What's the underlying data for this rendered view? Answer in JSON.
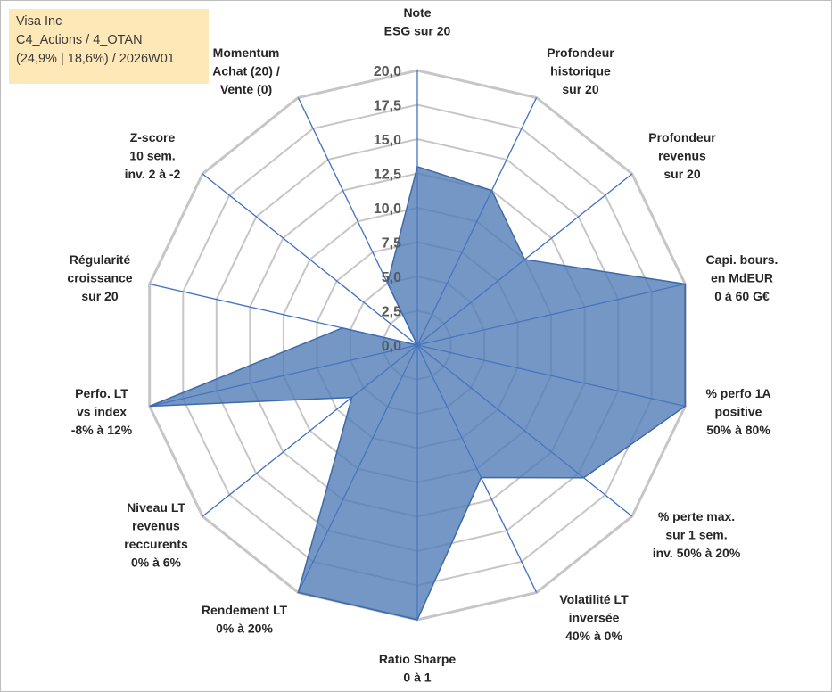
{
  "info": {
    "company": "Visa Inc",
    "portfolio": "C4_Actions / 4_OTAN",
    "details": "(24,9% | 18,6%) / 2026W01"
  },
  "chart_data": {
    "type": "radar",
    "title": "",
    "r_range": [
      0,
      20
    ],
    "tick_values": [
      0,
      2.5,
      5,
      7.5,
      10,
      12.5,
      15,
      17.5,
      20
    ],
    "tick_labels": [
      "0,0",
      "2,5",
      "5,0",
      "7,5",
      "10,0",
      "12,5",
      "15,0",
      "17,5",
      "20,0"
    ],
    "axes": [
      {
        "label": [
          "Note",
          "ESG sur 20"
        ],
        "value": 13.0
      },
      {
        "label": [
          "Profondeur",
          "historique",
          "sur 20"
        ],
        "value": 12.5
      },
      {
        "label": [
          "Profondeur",
          "revenus",
          "sur 20"
        ],
        "value": 10.0
      },
      {
        "label": [
          "Capi. bours.",
          "en MdEUR",
          "0 à 60 G€"
        ],
        "value": 20.0
      },
      {
        "label": [
          "% perfo 1A",
          "positive",
          "50% à 80%"
        ],
        "value": 20.0
      },
      {
        "label": [
          "% perte max.",
          "sur 1 sem.",
          "inv. 50% à 20%"
        ],
        "value": 15.5
      },
      {
        "label": [
          "Volatilité LT",
          "inversée",
          "40% à 0%"
        ],
        "value": 10.7
      },
      {
        "label": [
          "Ratio Sharpe",
          "0 à 1"
        ],
        "value": 20.0
      },
      {
        "label": [
          "Rendement LT",
          "0% à 20%"
        ],
        "value": 20.0
      },
      {
        "label": [
          "Niveau LT",
          "revenus",
          "reccurents",
          "0% à 6%"
        ],
        "value": 6.1
      },
      {
        "label": [
          "Perfo. LT",
          "vs index",
          "-8% à 12%"
        ],
        "value": 20.0
      },
      {
        "label": [
          "Régularité",
          "croissance",
          "sur 20"
        ],
        "value": 5.6
      },
      {
        "label": [
          "Z-score",
          "10 sem.",
          "inv. 2 à -2"
        ],
        "value": 0.0
      },
      {
        "label": [
          "Momentum",
          "Achat (20) /",
          "Vente (0)"
        ],
        "value": 5.0
      }
    ],
    "colors": {
      "fill": "#4e7ab5",
      "stroke": "#3e6aa8",
      "spoke": "#4472c4",
      "grid": "#c6c6c6"
    }
  }
}
